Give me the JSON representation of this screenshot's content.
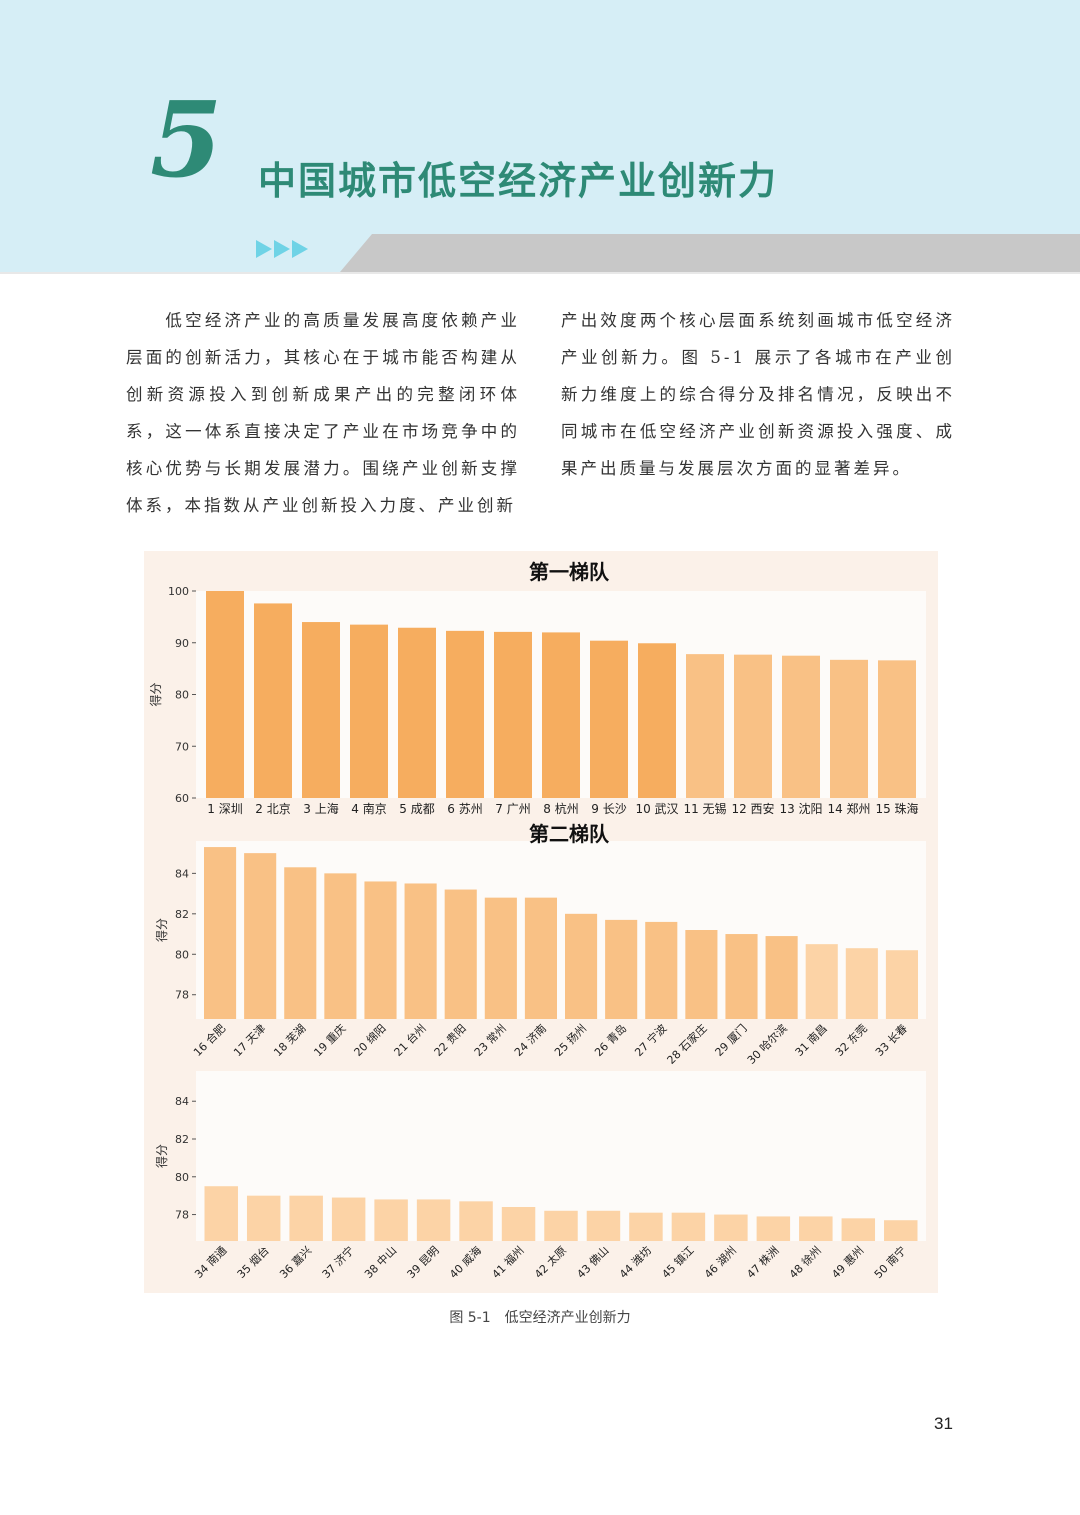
{
  "header": {
    "chapter_number": "5",
    "chapter_title": "中国城市低空经济产业创新力"
  },
  "body": {
    "left_text": "　　低空经济产业的高质量发展高度依赖产业层面的创新活力，其核心在于城市能否构建从创新资源投入到创新成果产出的完整闭环体系，这一体系直接决定了产业在市场竞争中的核心优势与长期发展潜力。围绕产业创新支撑体系，本指数从产业创新投入力度、产业创新",
    "right_text": "产出效度两个核心层面系统刻画城市低空经济产业创新力。图 5-1 展示了各城市在产业创新力维度上的综合得分及排名情况，反映出不同城市在低空经济产业创新资源投入强度、成果产出质量与发展层次方面的显著差异。"
  },
  "colors": {
    "header_band": "#d6eef6",
    "title_green": "#2e8a76",
    "arrow_cyan": "#6fd3e6",
    "stripe_gray": "#c8c8c8",
    "figure_bg": "#fbf1e9",
    "plot_bg": "#fdfbf9",
    "bar_dark": "#f6ad5f",
    "bar_mid": "#f9c185",
    "bar_light": "#fcd3a6"
  },
  "chart_data": [
    {
      "type": "bar",
      "title": "第一梯队",
      "ylabel": "得分",
      "ylim": [
        60,
        100
      ],
      "yticks": [
        60,
        70,
        80,
        90,
        100
      ],
      "grid": false,
      "categories": [
        "1 深圳",
        "2 北京",
        "3 上海",
        "4 南京",
        "5 成都",
        "6 苏州",
        "7 广州",
        "8 杭州",
        "9 长沙",
        "10 武汉",
        "11 无锡",
        "12 西安",
        "13 沈阳",
        "14 郑州",
        "15 珠海"
      ],
      "values": [
        100,
        97.6,
        94.0,
        93.5,
        92.9,
        92.3,
        92.1,
        92.0,
        90.4,
        89.9,
        87.8,
        87.7,
        87.5,
        86.7,
        86.6
      ],
      "shade": [
        "dark",
        "dark",
        "dark",
        "dark",
        "dark",
        "dark",
        "dark",
        "dark",
        "dark",
        "dark",
        "mid",
        "mid",
        "mid",
        "mid",
        "mid"
      ]
    },
    {
      "type": "bar",
      "title": "第二梯队",
      "ylabel": "得分",
      "ylim": [
        76.8,
        85.6
      ],
      "yticks": [
        78,
        80,
        82,
        84
      ],
      "grid": false,
      "categories": [
        "16 合肥",
        "17 天津",
        "18 芜湖",
        "19 重庆",
        "20 绵阳",
        "21 台州",
        "22 贵阳",
        "23 常州",
        "24 济南",
        "25 扬州",
        "26 青岛",
        "27 宁波",
        "28 石家庄",
        "29 厦门",
        "30 哈尔滨",
        "31 南昌",
        "32 东莞",
        "33 长春"
      ],
      "values": [
        85.3,
        85.0,
        84.3,
        84.0,
        83.6,
        83.5,
        83.2,
        82.8,
        82.8,
        82.0,
        81.7,
        81.6,
        81.2,
        81.0,
        80.9,
        80.5,
        80.3,
        80.2
      ],
      "shade": [
        "mid",
        "mid",
        "mid",
        "mid",
        "mid",
        "mid",
        "mid",
        "mid",
        "mid",
        "mid",
        "mid",
        "mid",
        "mid",
        "mid",
        "mid",
        "light",
        "light",
        "light"
      ]
    },
    {
      "type": "bar",
      "title": "",
      "ylabel": "得分",
      "ylim": [
        76.6,
        85.6
      ],
      "yticks": [
        78,
        80,
        82,
        84
      ],
      "grid": false,
      "categories": [
        "34 南通",
        "35 烟台",
        "36 嘉兴",
        "37 济宁",
        "38 中山",
        "39 昆明",
        "40 威海",
        "41 福州",
        "42 太原",
        "43 佛山",
        "44 潍坊",
        "45 镇江",
        "46 湖州",
        "47 株洲",
        "48 徐州",
        "49 惠州",
        "50 南宁"
      ],
      "values": [
        79.5,
        79.0,
        79.0,
        78.9,
        78.8,
        78.8,
        78.7,
        78.4,
        78.2,
        78.2,
        78.1,
        78.1,
        78.0,
        77.9,
        77.9,
        77.8,
        77.7
      ],
      "shade": [
        "light",
        "light",
        "light",
        "light",
        "light",
        "light",
        "light",
        "light",
        "light",
        "light",
        "light",
        "light",
        "light",
        "light",
        "light",
        "light",
        "light"
      ]
    }
  ],
  "figure": {
    "caption": "图 5-1　低空经济产业创新力"
  },
  "page": {
    "number": "31"
  }
}
